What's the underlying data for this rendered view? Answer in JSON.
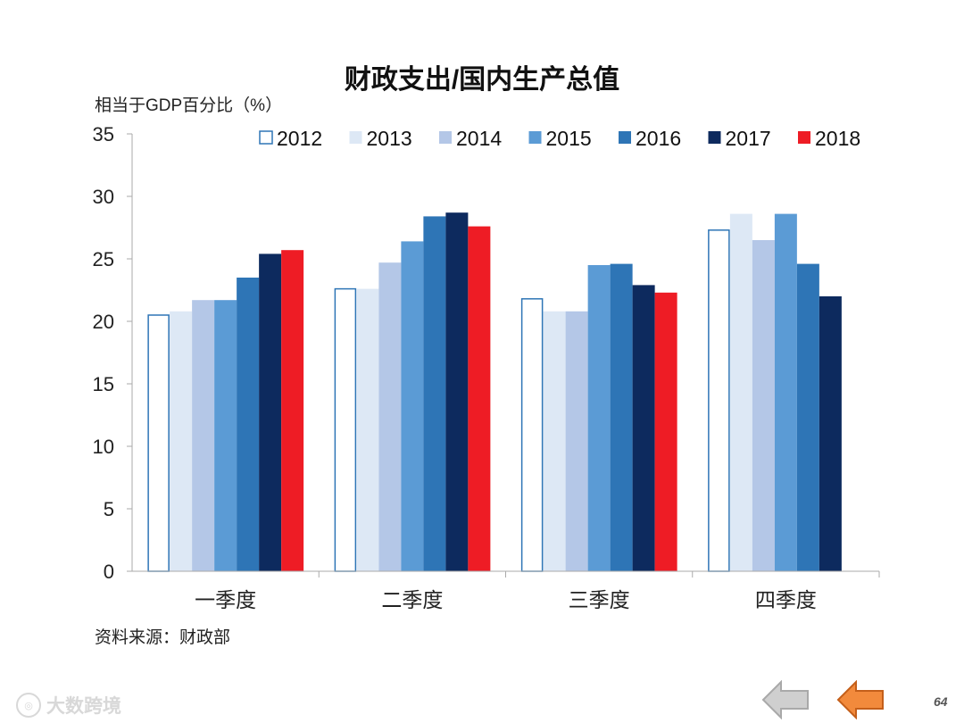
{
  "slide": {
    "page_number": "64"
  },
  "watermark": {
    "text": "大数跨境",
    "icon": "logo-icon"
  },
  "nav": {
    "prev_icon": "arrow-left-icon",
    "back_icon": "arrow-left-icon"
  },
  "colors": {
    "2012": "#ffffff",
    "2013": "#dde8f5",
    "2014": "#b4c7e7",
    "2015": "#5b9bd5",
    "2016": "#2e75b6",
    "2017": "#0d2a5e",
    "2018": "#ee1c25",
    "outline_2012": "#2e75b6",
    "axis": "#aaaaaa",
    "nav_prev": "#a9a9a9",
    "nav_back": "#f28a3c"
  },
  "chart_data": {
    "type": "bar",
    "title": "财政支出/国内生产总值",
    "ylabel": "相当于GDP百分比（%）",
    "xlabel": "",
    "source": "资料来源：财政部",
    "ylim": [
      0,
      35
    ],
    "yticks": [
      "0",
      "5",
      "10",
      "15",
      "20",
      "25",
      "30",
      "35"
    ],
    "categories": [
      "一季度",
      "二季度",
      "三季度",
      "四季度"
    ],
    "legend_position": "top",
    "series": [
      {
        "name": "2012",
        "values": [
          20.5,
          22.6,
          21.8,
          27.3
        ]
      },
      {
        "name": "2013",
        "values": [
          20.8,
          22.6,
          20.8,
          28.6
        ]
      },
      {
        "name": "2014",
        "values": [
          21.7,
          24.7,
          20.8,
          26.5
        ]
      },
      {
        "name": "2015",
        "values": [
          21.7,
          26.4,
          24.5,
          28.6
        ]
      },
      {
        "name": "2016",
        "values": [
          23.5,
          28.4,
          24.6,
          24.6
        ]
      },
      {
        "name": "2017",
        "values": [
          25.4,
          28.7,
          22.9,
          22.0
        ]
      },
      {
        "name": "2018",
        "values": [
          25.7,
          27.6,
          22.3,
          null
        ]
      }
    ]
  }
}
